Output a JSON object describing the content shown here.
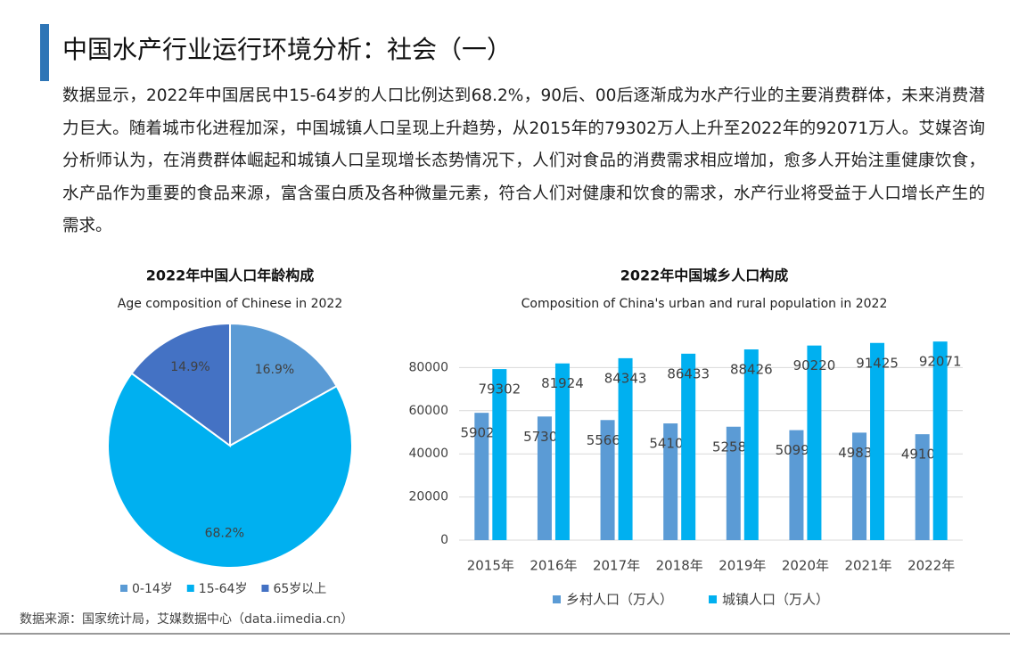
{
  "header": {
    "title": "中国水产行业运行环境分析：社会（一）"
  },
  "paragraph": "数据显示，2022年中国居民中15-64岁的人口比例达到68.2%，90后、00后逐渐成为水产行业的主要消费群体，未来消费潜力巨大。随着城市化进程加深，中国城镇人口呈现上升趋势，从2015年的79302万人上升至2022年的92071万人。艾媒咨询分析师认为，在消费群体崛起和城镇人口呈现增长态势情况下，人们对食品的消费需求相应增加，愈多人开始注重健康饮食，水产品作为重要的食品来源，富含蛋白质及各种微量元素，符合人们对健康和饮食的需求，水产行业将受益于人口增长产生的需求。",
  "chart_data": [
    {
      "type": "pie",
      "title": "2022年中国人口年龄构成",
      "subtitle": "Age composition of Chinese in 2022",
      "categories": [
        "0-14岁",
        "15-64岁",
        "65岁以上"
      ],
      "values": [
        16.9,
        68.2,
        14.9
      ],
      "value_labels": [
        "16.9%",
        "68.2%",
        "14.9%"
      ],
      "colors": [
        "#5b9bd5",
        "#00b0f0",
        "#4472c4"
      ]
    },
    {
      "type": "bar",
      "title": "2022年中国城乡人口构成",
      "subtitle": "Composition of China's urban and rural population in 2022",
      "categories": [
        "2015年",
        "2016年",
        "2017年",
        "2018年",
        "2019年",
        "2020年",
        "2021年",
        "2022年"
      ],
      "series": [
        {
          "name": "乡村人口（万人）",
          "color": "#5b9bd5",
          "values": [
            59024,
            57308,
            55668,
            54108,
            52582,
            50992,
            49835,
            49104
          ]
        },
        {
          "name": "城镇人口（万人）",
          "color": "#00b0f0",
          "values": [
            79302,
            81924,
            84343,
            86433,
            88426,
            90220,
            91425,
            92071
          ]
        }
      ],
      "ylim": [
        0,
        100000
      ],
      "yticks": [
        0,
        20000,
        40000,
        60000,
        80000
      ],
      "grid": true
    }
  ],
  "source": "数据来源：国家统计局，艾媒数据中心（data.iimedia.cn）"
}
